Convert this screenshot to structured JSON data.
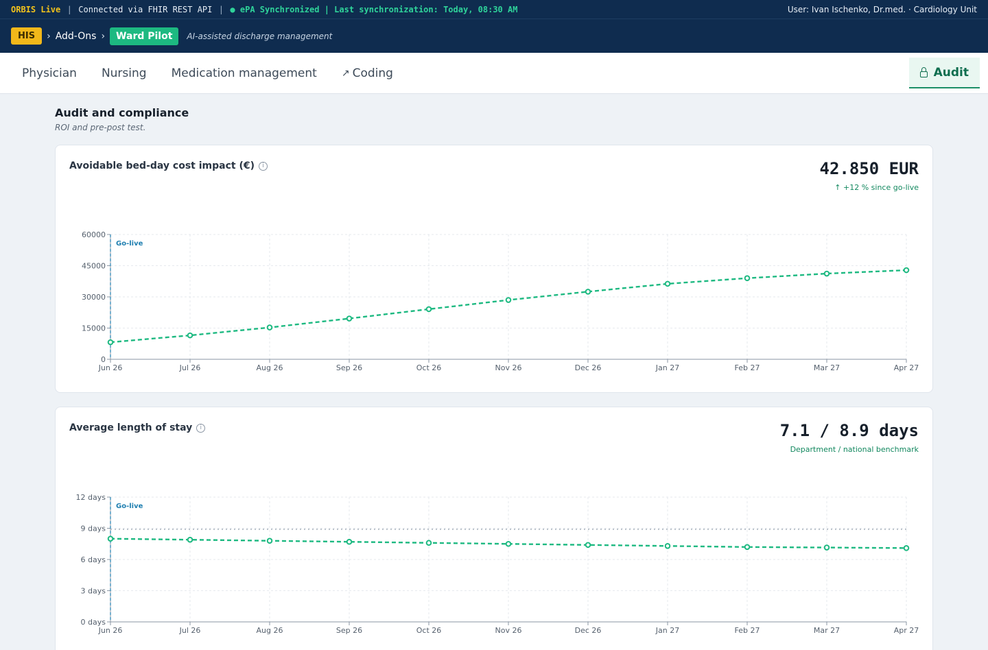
{
  "statusbar": {
    "live": "ORBIS Live",
    "connection": "Connected via FHIR REST API",
    "sync": "● ePA Synchronized | Last synchronization: Today, 08:30 AM",
    "user": "User: Ivan Ischenko, Dr.med. · Cardiology Unit"
  },
  "breadcrumb": {
    "his": "HIS",
    "addons": "Add-Ons",
    "product": "Ward Pilot",
    "tagline": "AI-assisted discharge management",
    "separator": "›"
  },
  "tabs": {
    "physician": "Physician",
    "nursing": "Nursing",
    "medication": "Medication management",
    "coding": "Coding",
    "coding_icon": "↗",
    "audit": "Audit"
  },
  "section": {
    "title": "Audit and compliance",
    "subtitle": "ROI and pre-post test."
  },
  "cards": {
    "cost": {
      "title": "Avoidable bed-day cost impact (€)",
      "info_icon": "i",
      "kpi": "42.850 EUR",
      "kpi_sub": "↑ +12 % since go-live"
    },
    "los": {
      "title": "Average length of stay",
      "info_icon": "i",
      "kpi": "7.1 / 8.9 days",
      "kpi_sub": "Department / national benchmark"
    }
  },
  "colors": {
    "accent": "#1db981",
    "golive": "#1f7fb0",
    "navy": "#0f2c4f",
    "his_badge": "#f2b81a"
  },
  "chart_data": [
    {
      "type": "line",
      "x": [
        "Jun 26",
        "Jul 26",
        "Aug 26",
        "Sep 26",
        "Oct 26",
        "Nov 26",
        "Dec 26",
        "Jan 27",
        "Feb 27",
        "Mar 27",
        "Apr 27"
      ],
      "series": [
        {
          "values": [
            8200,
            11500,
            15300,
            19600,
            24100,
            28500,
            32500,
            36300,
            39000,
            41200,
            42850
          ]
        }
      ],
      "yticks": [
        "0",
        "15000",
        "30000",
        "45000",
        "60000"
      ],
      "ylim": [
        0,
        60000
      ],
      "annotations": [
        {
          "label": "Go-live",
          "x": "Jun 26"
        }
      ],
      "grid": true
    },
    {
      "type": "line",
      "x": [
        "Jun 26",
        "Jul 26",
        "Aug 26",
        "Sep 26",
        "Oct 26",
        "Nov 26",
        "Dec 26",
        "Jan 27",
        "Feb 27",
        "Mar 27",
        "Apr 27"
      ],
      "series": [
        {
          "values": [
            8.0,
            7.9,
            7.8,
            7.7,
            7.6,
            7.5,
            7.4,
            7.3,
            7.2,
            7.15,
            7.1
          ]
        }
      ],
      "benchmark": 8.9,
      "yticks": [
        "0 days",
        "3 days",
        "6 days",
        "9 days",
        "12 days"
      ],
      "ylim": [
        0,
        12
      ],
      "annotations": [
        {
          "label": "Go-live",
          "x": "Jun 26"
        }
      ],
      "grid": true
    }
  ]
}
